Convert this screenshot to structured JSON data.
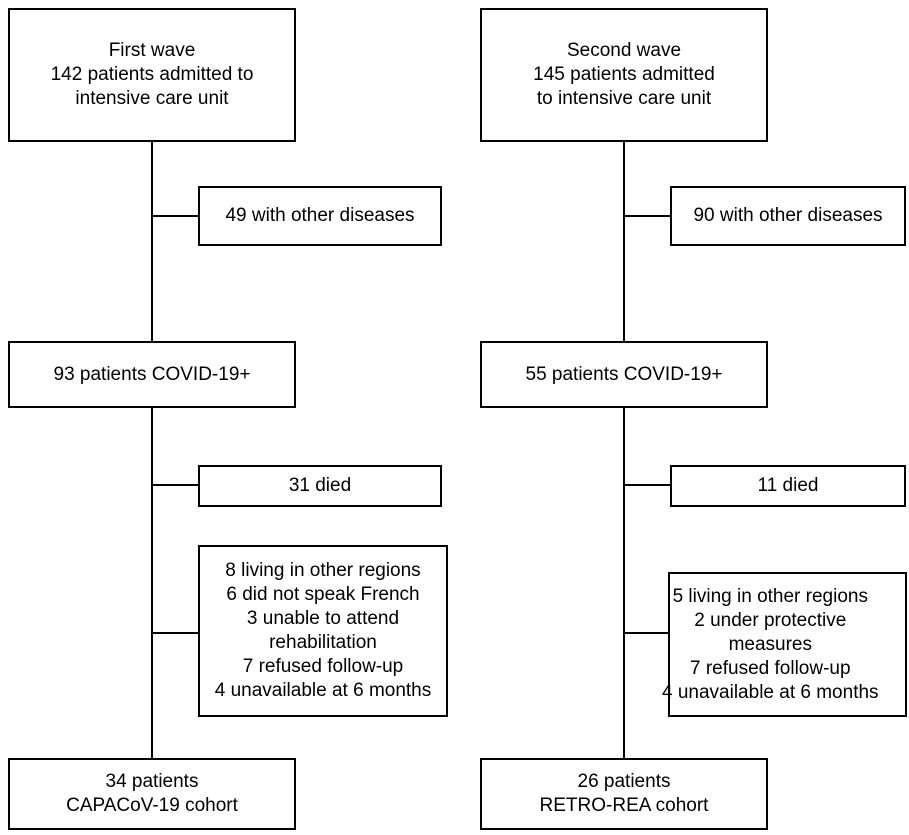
{
  "left": {
    "header": "First wave\n142 patients admitted to\nintensive care unit",
    "exclusion_1": "49 with other diseases",
    "middle": "93 patients COVID-19+",
    "exclusion_2": "31 died",
    "exclusion_3": "8 living in other regions\n6 did not speak French\n3 unable to attend\nrehabilitation\n7 refused follow-up\n4 unavailable at 6 months",
    "final": "34 patients\nCAPACoV-19 cohort"
  },
  "right": {
    "header": "Second wave\n145 patients admitted\nto intensive care unit",
    "exclusion_1": "90 with other diseases",
    "middle": "55 patients COVID-19+",
    "exclusion_2": "11 died",
    "exclusion_3": "5 living in other regions\n2 under protective\nmeasures\n7 refused follow-up\n4 unavailable at 6 months",
    "final": "26 patients\nRETRO-REA cohort"
  }
}
